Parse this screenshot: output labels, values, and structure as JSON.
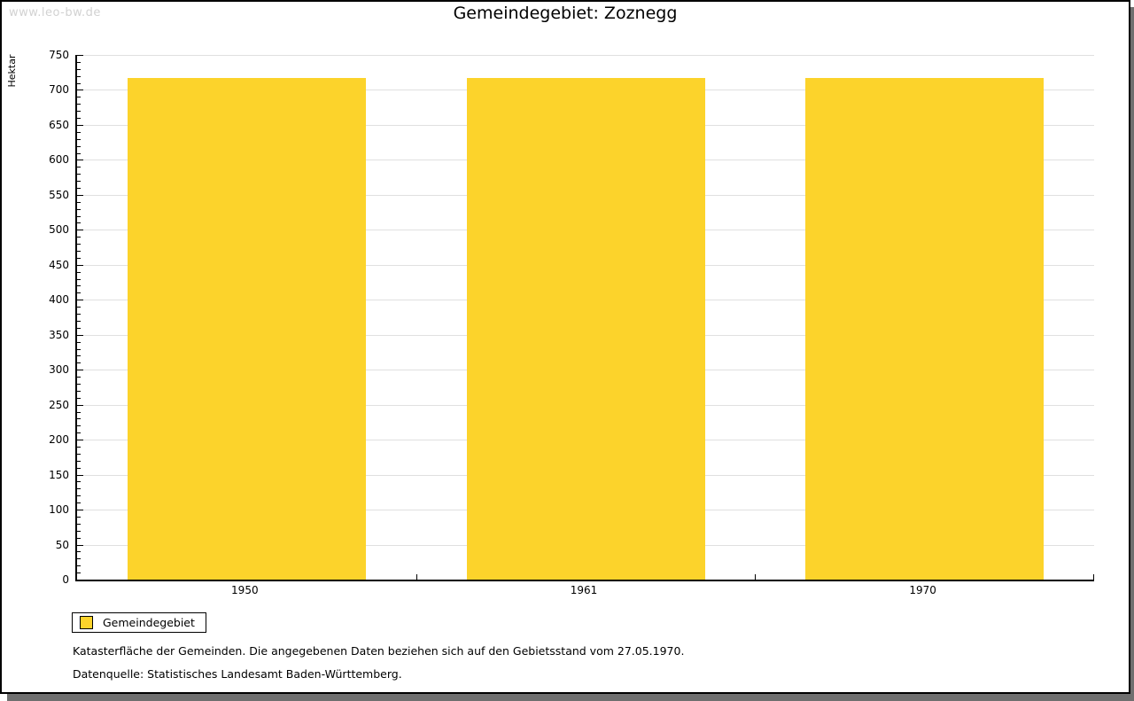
{
  "page": {
    "watermark": "www.leo-bw.de",
    "footnote1": "Katasterfläche der Gemeinden. Die angegebenen Daten beziehen sich auf den Gebietsstand vom 27.05.1970.",
    "footnote2": "Datenquelle: Statistisches Landesamt Baden-Württemberg."
  },
  "chart_data": {
    "type": "bar",
    "title": "Gemeindegebiet: Zoznegg",
    "categories": [
      "1950",
      "1961",
      "1970"
    ],
    "series": [
      {
        "name": "Gemeindegebiet",
        "values": [
          717,
          717,
          717
        ]
      }
    ],
    "xlabel": "",
    "ylabel": "Hektar",
    "ylim": [
      0,
      750
    ],
    "ytick_step": 50,
    "minor_tick_step": 10,
    "grid": "horizontal-major",
    "legend_position": "bottom-left",
    "legend_entries": [
      "Gemeindegebiet"
    ],
    "colors": {
      "bar": "#FCD32B",
      "gridline": "#e0e0e0",
      "axis": "#000000",
      "watermark": "#d2d2d2",
      "frame_shadow": "#6f6f6f"
    }
  }
}
